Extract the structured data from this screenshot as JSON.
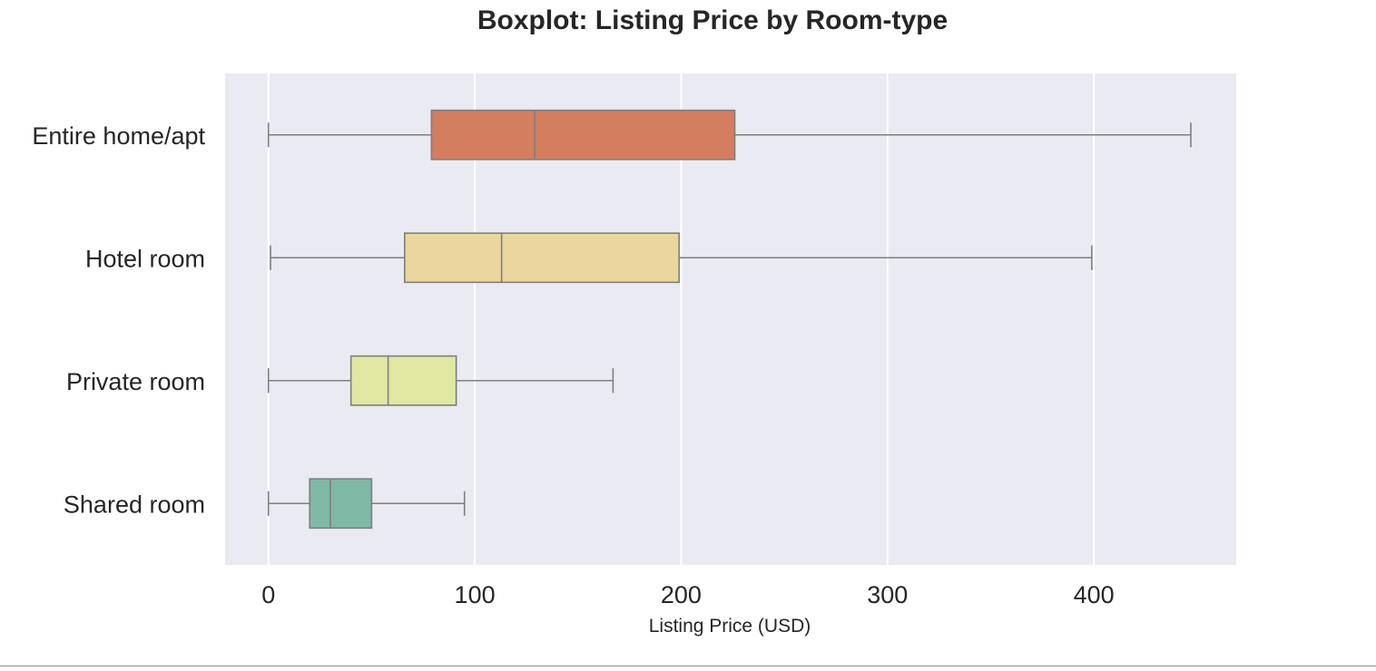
{
  "chart_data": {
    "type": "boxplot",
    "orientation": "horizontal",
    "title": "Boxplot: Listing Price by Room-type",
    "xlabel": "Listing Price (USD)",
    "ylabel": "",
    "xlim": [
      -21,
      469
    ],
    "xticks": [
      0,
      100,
      200,
      300,
      400
    ],
    "xtick_labels": [
      "0",
      "100",
      "200",
      "300",
      "400"
    ],
    "grid": "vertical",
    "background": "#eaeaf2",
    "categories": [
      "Entire home/apt",
      "Hotel room",
      "Private room",
      "Shared room"
    ],
    "boxes": [
      {
        "category": "Entire home/apt",
        "whisker_low": 0,
        "q1": 79,
        "median": 129,
        "q3": 226,
        "whisker_high": 447,
        "color": "#d37e5e"
      },
      {
        "category": "Hotel room",
        "whisker_low": 1,
        "q1": 66,
        "median": 113,
        "q3": 199,
        "whisker_high": 399,
        "color": "#ebd69e"
      },
      {
        "category": "Private room",
        "whisker_low": 0,
        "q1": 40,
        "median": 58,
        "q3": 91,
        "whisker_high": 167,
        "color": "#e0e8a2"
      },
      {
        "category": "Shared room",
        "whisker_low": 0,
        "q1": 20,
        "median": 30,
        "q3": 50,
        "whisker_high": 95,
        "color": "#80b8a6"
      }
    ]
  }
}
